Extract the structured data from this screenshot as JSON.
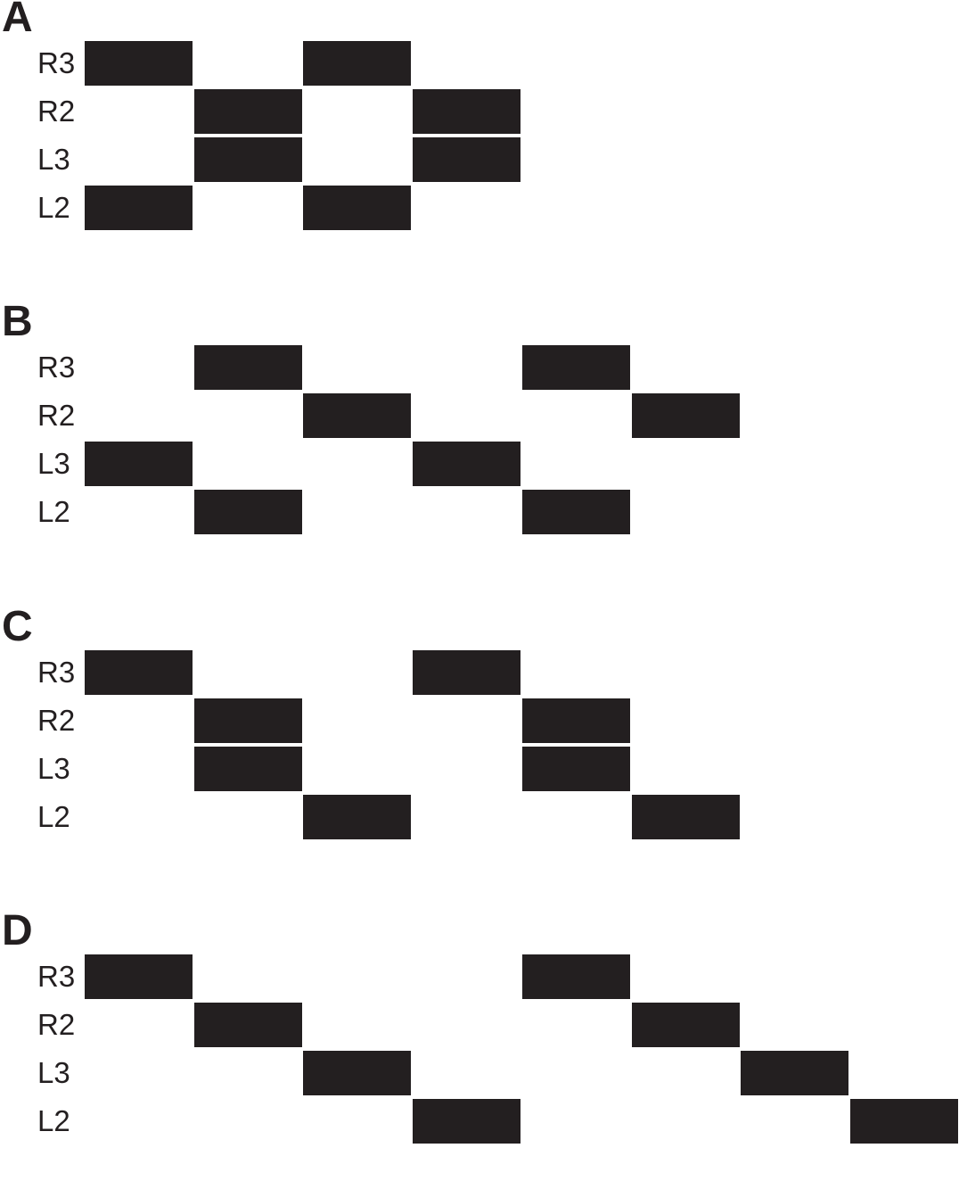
{
  "diagram": {
    "colors": {
      "bar": "#231f20",
      "background": "#ffffff"
    },
    "panels": [
      {
        "label": "A",
        "rows": [
          "R3",
          "R2",
          "L3",
          "L2"
        ],
        "steps": {
          "R3": [
            0,
            2
          ],
          "R2": [
            1,
            3
          ],
          "L3": [
            1,
            3
          ],
          "L2": [
            0,
            2
          ]
        }
      },
      {
        "label": "B",
        "rows": [
          "R3",
          "R2",
          "L3",
          "L2"
        ],
        "steps": {
          "R3": [
            1,
            4
          ],
          "R2": [
            2,
            5
          ],
          "L3": [
            0,
            3
          ],
          "L2": [
            1,
            4
          ]
        }
      },
      {
        "label": "C",
        "rows": [
          "R3",
          "R2",
          "L3",
          "L2"
        ],
        "steps": {
          "R3": [
            0,
            3
          ],
          "R2": [
            1,
            4
          ],
          "L3": [
            1,
            4
          ],
          "L2": [
            2,
            5
          ]
        }
      },
      {
        "label": "D",
        "rows": [
          "R3",
          "R2",
          "L3",
          "L2"
        ],
        "steps": {
          "R3": [
            0,
            4
          ],
          "R2": [
            1,
            5
          ],
          "L3": [
            2,
            6
          ],
          "L2": [
            3,
            7
          ]
        }
      }
    ]
  }
}
